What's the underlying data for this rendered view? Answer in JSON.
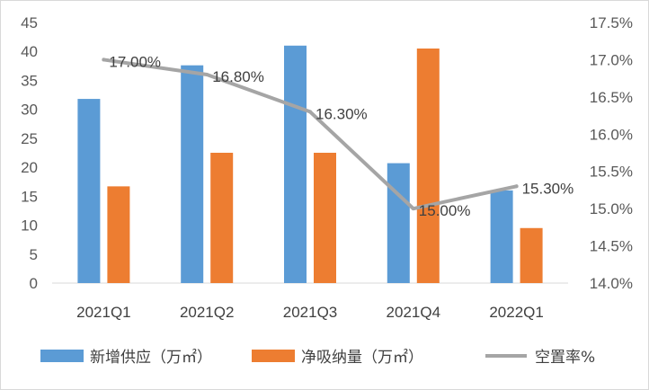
{
  "chart_data": {
    "type": "bar",
    "categories": [
      "2021Q1",
      "2021Q2",
      "2021Q3",
      "2021Q4",
      "2022Q1"
    ],
    "series": [
      {
        "name": "新增供应（万㎡）",
        "type": "bar",
        "axis": "left",
        "color": "#5B9BD5",
        "values": [
          31.8,
          37.6,
          41.0,
          20.7,
          16.0
        ]
      },
      {
        "name": "净吸纳量（万㎡）",
        "type": "bar",
        "axis": "left",
        "color": "#ED7D31",
        "values": [
          16.7,
          22.5,
          22.5,
          40.5,
          9.5
        ]
      },
      {
        "name": "空置率%",
        "type": "line",
        "axis": "right",
        "color": "#A5A5A5",
        "values": [
          17.0,
          16.8,
          16.3,
          15.0,
          15.3
        ],
        "data_labels": [
          "17.00%",
          "16.80%",
          "16.30%",
          "15.00%",
          "15.30%"
        ]
      }
    ],
    "y_left": {
      "min": 0,
      "max": 45,
      "step": 5,
      "ticks": [
        "0",
        "5",
        "10",
        "15",
        "20",
        "25",
        "30",
        "35",
        "40",
        "45"
      ]
    },
    "y_right": {
      "min": 14.0,
      "max": 17.5,
      "step": 0.5,
      "ticks": [
        "14.0%",
        "14.5%",
        "15.0%",
        "15.5%",
        "16.0%",
        "16.5%",
        "17.0%",
        "17.5%"
      ]
    },
    "grid": false,
    "legend": "bottom"
  }
}
